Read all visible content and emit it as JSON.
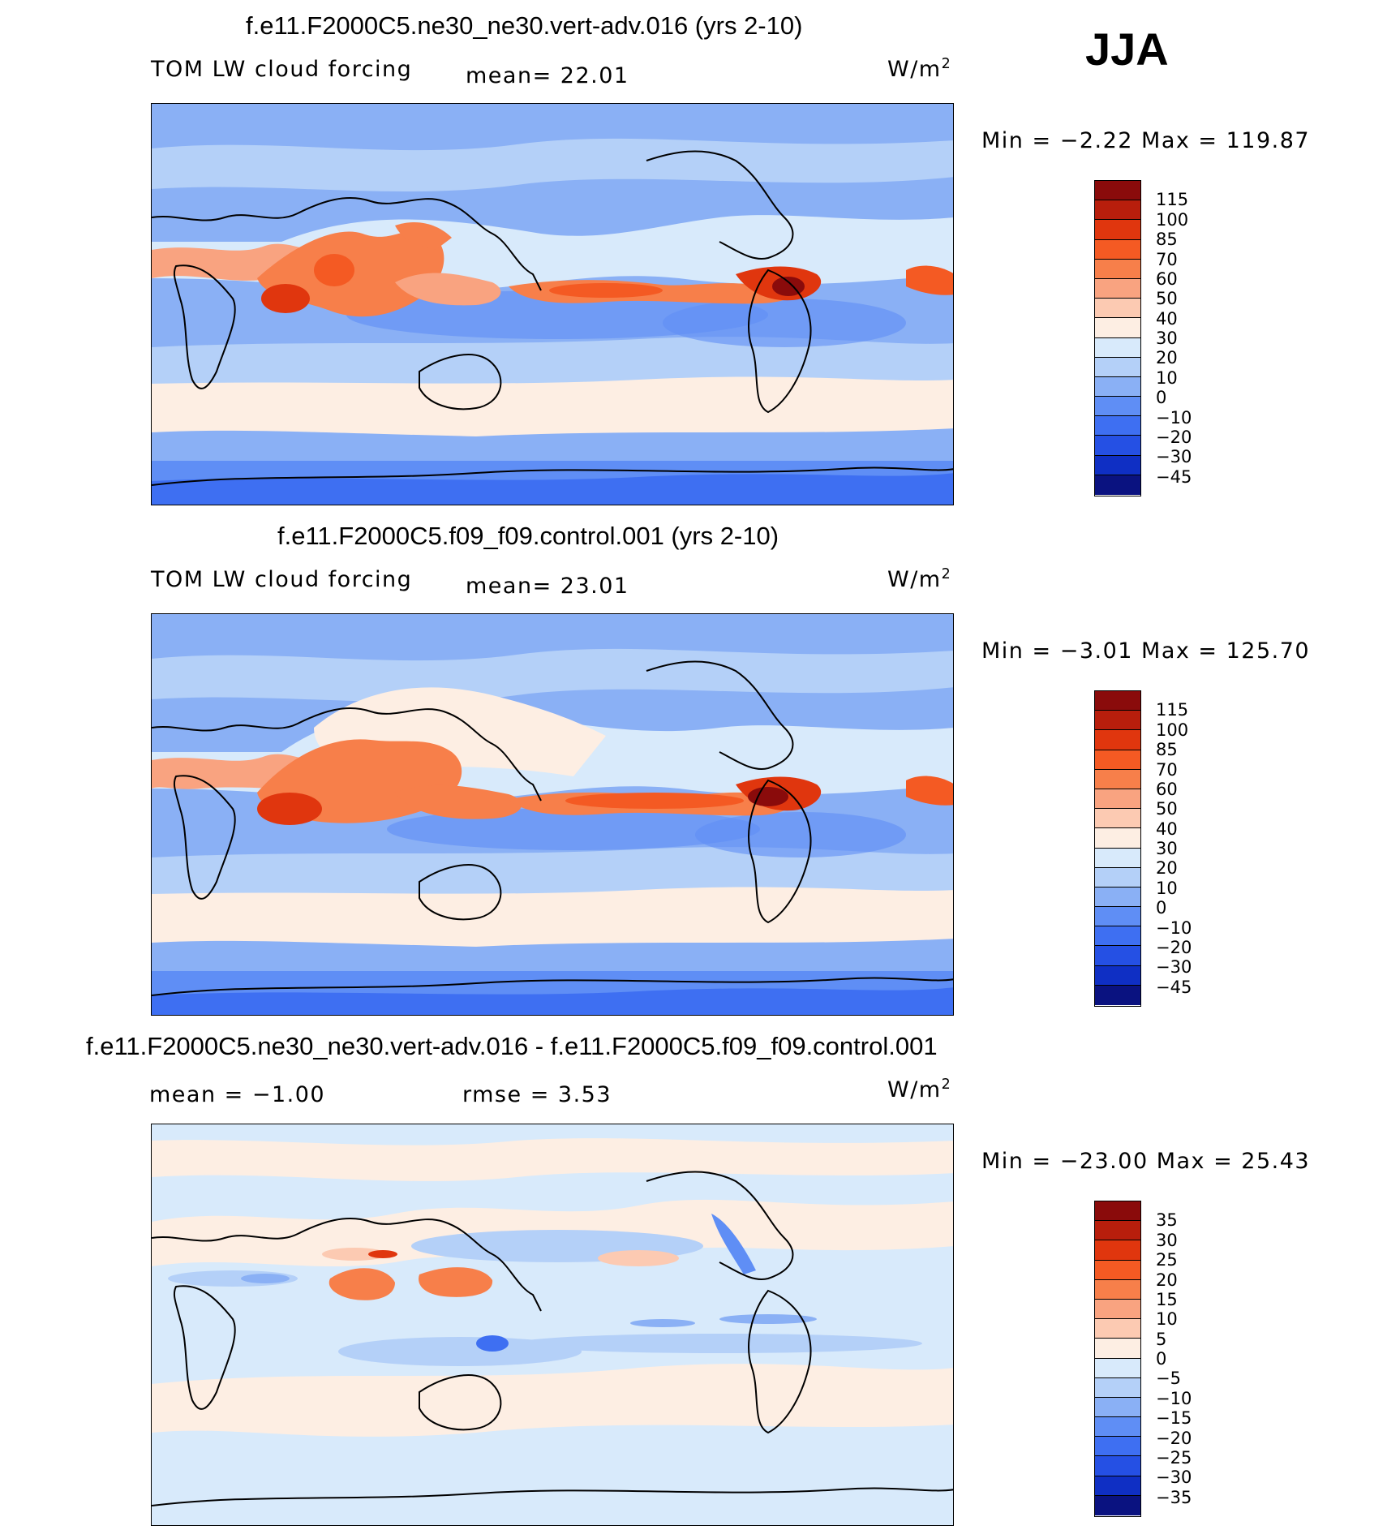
{
  "season": "JJA",
  "chart_data": [
    {
      "type": "heatmap",
      "title": "f.e11.F2000C5.ne30_ne30.vert-adv.016 (yrs 2-10)",
      "field": "TOM LW cloud forcing",
      "units_base": "W/m",
      "units_exp": "2",
      "stat1": "mean=   22.01",
      "minmax": "Min  =   −2.22  Max  =  119.87",
      "min": -2.22,
      "max": 119.87,
      "mean": 22.01,
      "colorbar_levels": [
        "115",
        "100",
        "85",
        "70",
        "60",
        "50",
        "40",
        "30",
        "20",
        "10",
        "0",
        "−10",
        "−20",
        "−30",
        "−45"
      ],
      "colorbar_colors": [
        "#8a0b0b",
        "#b81e0c",
        "#e0360e",
        "#f45a23",
        "#f77f4a",
        "#f9a380",
        "#fccab2",
        "#fdeee3",
        "#d8eafb",
        "#b4d0f8",
        "#8ab0f5",
        "#5f8ef5",
        "#3e6ff2",
        "#2550e4",
        "#0f2fc4",
        "#0a1280"
      ]
    },
    {
      "type": "heatmap",
      "title": "f.e11.F2000C5.f09_f09.control.001 (yrs 2-10)",
      "field": "TOM LW cloud forcing",
      "units_base": "W/m",
      "units_exp": "2",
      "stat1": "mean=   23.01",
      "minmax": "Min  =   −3.01  Max  =  125.70",
      "min": -3.01,
      "max": 125.7,
      "mean": 23.01,
      "colorbar_levels": [
        "115",
        "100",
        "85",
        "70",
        "60",
        "50",
        "40",
        "30",
        "20",
        "10",
        "0",
        "−10",
        "−20",
        "−30",
        "−45"
      ],
      "colorbar_colors": [
        "#8a0b0b",
        "#b81e0c",
        "#e0360e",
        "#f45a23",
        "#f77f4a",
        "#f9a380",
        "#fccab2",
        "#fdeee3",
        "#d8eafb",
        "#b4d0f8",
        "#8ab0f5",
        "#5f8ef5",
        "#3e6ff2",
        "#2550e4",
        "#0f2fc4",
        "#0a1280"
      ]
    },
    {
      "type": "heatmap",
      "title": "f.e11.F2000C5.ne30_ne30.vert-adv.016 - f.e11.F2000C5.f09_f09.control.001",
      "field": "",
      "units_base": "W/m",
      "units_exp": "2",
      "stat1": "mean  =   −1.00",
      "stat2": "rmse  =     3.53",
      "minmax": "Min  = −23.00  Max  =    25.43",
      "min": -23.0,
      "max": 25.43,
      "mean": -1.0,
      "rmse": 3.53,
      "colorbar_levels": [
        "35",
        "30",
        "25",
        "20",
        "15",
        "10",
        "5",
        "0",
        "−5",
        "−10",
        "−15",
        "−20",
        "−25",
        "−30",
        "−35"
      ],
      "colorbar_colors": [
        "#8a0b0b",
        "#b81e0c",
        "#e0360e",
        "#f45a23",
        "#f77f4a",
        "#f9a380",
        "#fccab2",
        "#fdeee3",
        "#d8eafb",
        "#b4d0f8",
        "#8ab0f5",
        "#5f8ef5",
        "#3e6ff2",
        "#2550e4",
        "#0f2fc4",
        "#0a1280"
      ]
    }
  ]
}
